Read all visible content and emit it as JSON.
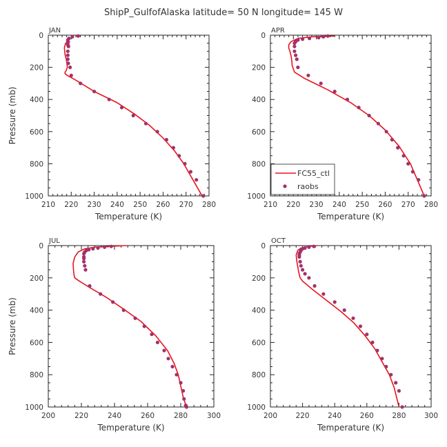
{
  "title": "ShipP_GulfofAlaska  latitude= 50 N longitude= 145 W",
  "colors": {
    "model": "#e8131b",
    "obs": "#a3316b",
    "axis": "#222222"
  },
  "legend": {
    "model_label": "FC55_ctl",
    "obs_label": "raobs",
    "panel": 1,
    "placement": "lower-left"
  },
  "chart_data": [
    {
      "type": "line",
      "panel_label": "JAN",
      "xlabel": "Temperature (K)",
      "ylabel": "Pressure (mb)",
      "xlim": [
        210,
        280
      ],
      "ylim": [
        0,
        1000
      ],
      "y_inverted": true,
      "xticks": [
        210,
        220,
        230,
        240,
        250,
        260,
        270,
        280
      ],
      "yticks": [
        0,
        200,
        400,
        600,
        800,
        1000
      ],
      "series": [
        {
          "name": "FC55_ctl",
          "kind": "line",
          "x": [
            219.5,
            217.5,
            217.0,
            217.3,
            218.0,
            218.3,
            217.8,
            217.3,
            217.3,
            218.3,
            222.0,
            230.0,
            240.0,
            247.5,
            254.0,
            260.0,
            265.0,
            269.0,
            273.0,
            277.0
          ],
          "y": [
            40,
            50,
            80,
            120,
            160,
            200,
            220,
            230,
            240,
            250,
            280,
            350,
            420,
            490,
            560,
            640,
            720,
            800,
            900,
            1000
          ]
        },
        {
          "name": "raobs",
          "kind": "scatter",
          "x": [
            223.0,
            220.5,
            219.0,
            218.5,
            218.5,
            218.5,
            218.5,
            218.8,
            218.5,
            218.5,
            218.5,
            218.7,
            219.5,
            220.0,
            224.0,
            230.0,
            236.5,
            242.0,
            247.0,
            252.5,
            257.5,
            261.5,
            264.5,
            267.0,
            269.5,
            272.0,
            274.5,
            277.5
          ],
          "y": [
            5,
            10,
            20,
            30,
            40,
            50,
            60,
            70,
            100,
            125,
            150,
            175,
            200,
            250,
            300,
            350,
            400,
            450,
            500,
            550,
            600,
            650,
            700,
            750,
            800,
            850,
            900,
            1000
          ]
        }
      ]
    },
    {
      "type": "line",
      "panel_label": "APR",
      "xlabel": "Temperature (K)",
      "ylabel": "",
      "xlim": [
        210,
        280
      ],
      "ylim": [
        0,
        1000
      ],
      "y_inverted": true,
      "xticks": [
        210,
        220,
        230,
        240,
        250,
        260,
        270,
        280
      ],
      "yticks": [
        0,
        200,
        400,
        600,
        800,
        1000
      ],
      "series": [
        {
          "name": "FC55_ctl",
          "kind": "line",
          "x": [
            238.0,
            228.0,
            222.0,
            219.0,
            218.0,
            218.0,
            218.5,
            219.0,
            219.3,
            219.5,
            220.0,
            220.5,
            225.0,
            235.0,
            245.0,
            253.0,
            260.0,
            266.0,
            271.0,
            277.0
          ],
          "y": [
            5,
            10,
            20,
            40,
            60,
            80,
            100,
            130,
            160,
            190,
            210,
            230,
            270,
            340,
            420,
            500,
            590,
            690,
            800,
            1000
          ]
        },
        {
          "name": "raobs",
          "kind": "scatter",
          "x": [
            235.0,
            233.0,
            231.0,
            227.0,
            224.0,
            222.0,
            221.0,
            220.5,
            220.5,
            220.5,
            221.0,
            221.5,
            222.0,
            226.5,
            232.0,
            238.0,
            243.5,
            248.5,
            253.0,
            257.0,
            260.5,
            263.0,
            265.5,
            268.0,
            270.0,
            272.0,
            274.5,
            277.0
          ],
          "y": [
            5,
            10,
            15,
            20,
            25,
            30,
            40,
            50,
            70,
            100,
            125,
            150,
            200,
            250,
            300,
            350,
            400,
            450,
            500,
            550,
            600,
            650,
            700,
            750,
            800,
            850,
            900,
            1000
          ]
        }
      ]
    },
    {
      "type": "line",
      "panel_label": "JUL",
      "xlabel": "Temperature (K)",
      "ylabel": "Pressure (mb)",
      "xlim": [
        200,
        300
      ],
      "ylim": [
        0,
        1000
      ],
      "y_inverted": true,
      "xticks": [
        200,
        220,
        240,
        260,
        280,
        300
      ],
      "yticks": [
        0,
        200,
        400,
        600,
        800,
        1000
      ],
      "series": [
        {
          "name": "FC55_ctl",
          "kind": "line",
          "x": [
            247.0,
            237.0,
            228.0,
            222.0,
            218.0,
            216.0,
            215.0,
            215.2,
            215.5,
            216.0,
            218.0,
            225.0,
            235.0,
            245.0,
            256.0,
            265.0,
            272.0,
            276.0,
            278.5,
            280.0,
            281.5,
            283.5
          ],
          "y": [
            0,
            5,
            10,
            20,
            40,
            70,
            110,
            150,
            180,
            200,
            215,
            260,
            320,
            390,
            470,
            560,
            650,
            730,
            800,
            870,
            940,
            1000
          ]
        },
        {
          "name": "raobs",
          "kind": "scatter",
          "x": [
            238.0,
            234.0,
            230.0,
            227.0,
            224.5,
            223.0,
            222.0,
            221.5,
            221.5,
            221.5,
            221.5,
            222.0,
            222.5,
            225.0,
            231.5,
            239.0,
            245.5,
            252.5,
            258.0,
            262.5,
            266.0,
            270.0,
            272.5,
            275.0,
            277.5,
            280.0,
            281.5,
            282.0,
            283.0,
            283.5
          ],
          "y": [
            5,
            10,
            15,
            20,
            25,
            30,
            40,
            50,
            70,
            80,
            100,
            125,
            150,
            250,
            300,
            350,
            400,
            450,
            500,
            550,
            600,
            650,
            700,
            750,
            800,
            850,
            900,
            950,
            990,
            1000
          ]
        }
      ]
    },
    {
      "type": "line",
      "panel_label": "OCT",
      "xlabel": "Temperature (K)",
      "ylabel": "",
      "xlim": [
        200,
        300
      ],
      "ylim": [
        0,
        1000
      ],
      "y_inverted": true,
      "xticks": [
        200,
        220,
        240,
        260,
        280,
        300
      ],
      "yticks": [
        0,
        200,
        400,
        600,
        800,
        1000
      ],
      "series": [
        {
          "name": "FC55_ctl",
          "kind": "line",
          "x": [
            229.0,
            224.0,
            219.0,
            217.0,
            216.0,
            216.5,
            217.0,
            217.5,
            218.0,
            218.5,
            220.0,
            226.0,
            235.0,
            244.0,
            252.0,
            259.0,
            265.0,
            269.5,
            274.0,
            277.0,
            280.0
          ],
          "y": [
            0,
            5,
            15,
            30,
            60,
            100,
            130,
            160,
            180,
            200,
            220,
            270,
            340,
            410,
            480,
            560,
            640,
            720,
            800,
            880,
            1000
          ]
        },
        {
          "name": "raobs",
          "kind": "scatter",
          "x": [
            227.0,
            224.0,
            221.5,
            220.0,
            219.0,
            218.5,
            218.0,
            218.0,
            218.0,
            218.5,
            219.0,
            220.0,
            221.5,
            224.0,
            227.5,
            233.0,
            240.0,
            246.0,
            251.5,
            256.0,
            260.0,
            263.5,
            266.5,
            269.5,
            272.0,
            275.0,
            278.0,
            280.0,
            282.0
          ],
          "y": [
            5,
            10,
            15,
            20,
            30,
            40,
            50,
            60,
            70,
            100,
            125,
            150,
            175,
            200,
            250,
            300,
            350,
            400,
            450,
            500,
            550,
            600,
            650,
            700,
            750,
            800,
            850,
            900,
            1000
          ]
        }
      ]
    }
  ]
}
